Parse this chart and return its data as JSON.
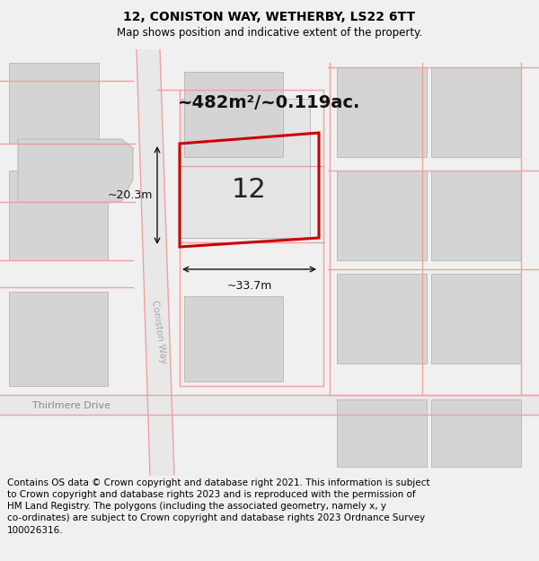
{
  "title": "12, CONISTON WAY, WETHERBY, LS22 6TT",
  "subtitle": "Map shows position and indicative extent of the property.",
  "footer": "Contains OS data © Crown copyright and database right 2021. This information is subject\nto Crown copyright and database rights 2023 and is reproduced with the permission of\nHM Land Registry. The polygons (including the associated geometry, namely x, y\nco-ordinates) are subject to Crown copyright and database rights 2023 Ordnance Survey\n100026316.",
  "area_label": "~482m²/~0.119ac.",
  "width_label": "~33.7m",
  "height_label": "~20.3m",
  "property_number": "12",
  "street_label": "Coniston Way",
  "street_label2": "Thirlmere Drive",
  "bg_color": "#f0f0f0",
  "map_bg": "#ffffff",
  "building_fill": "#d4d4d4",
  "building_stroke": "#bbbbbb",
  "pink_line_color": "#f0a0a0",
  "red_rect_color": "#cc0000",
  "arrow_color": "#111111",
  "title_fontsize": 10,
  "subtitle_fontsize": 8.5,
  "footer_fontsize": 7.5
}
